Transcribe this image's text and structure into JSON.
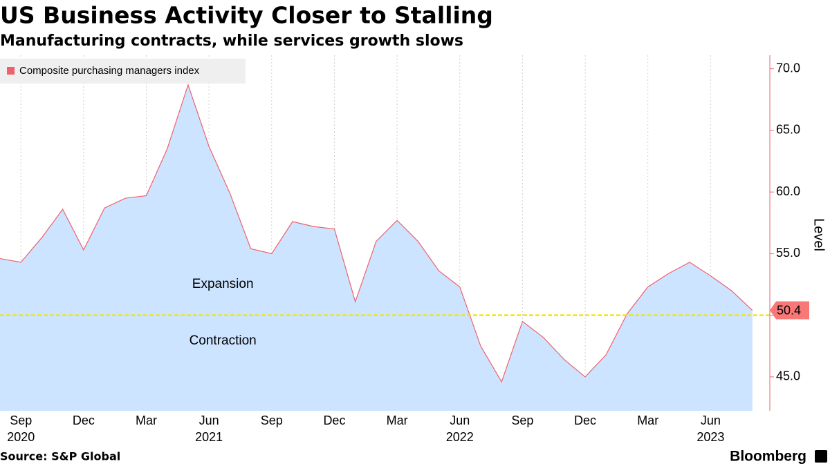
{
  "chart_data": {
    "type": "area",
    "title": "US Business Activity Closer to Stalling",
    "subtitle": "Manufacturing contracts, while services growth slows",
    "y_axis_label": "Level",
    "source": "Source: S&P Global",
    "brand": "Bloomberg",
    "x": [
      "2020-08",
      "2020-09",
      "2020-10",
      "2020-11",
      "2020-12",
      "2021-01",
      "2021-02",
      "2021-03",
      "2021-04",
      "2021-05",
      "2021-06",
      "2021-07",
      "2021-08",
      "2021-09",
      "2021-10",
      "2021-11",
      "2021-12",
      "2022-01",
      "2022-02",
      "2022-03",
      "2022-04",
      "2022-05",
      "2022-06",
      "2022-07",
      "2022-08",
      "2022-09",
      "2022-10",
      "2022-11",
      "2022-12",
      "2023-01",
      "2023-02",
      "2023-03",
      "2023-04",
      "2023-05",
      "2023-06",
      "2023-07",
      "2023-08"
    ],
    "series": [
      {
        "name": "Composite purchasing managers index",
        "color": "#f0606a",
        "fill": "#cce4ff",
        "values": [
          54.6,
          54.3,
          56.3,
          58.6,
          55.3,
          58.7,
          59.5,
          59.7,
          63.5,
          68.7,
          63.7,
          59.9,
          55.4,
          55.0,
          57.6,
          57.2,
          57.0,
          51.1,
          56.0,
          57.7,
          56.0,
          53.6,
          52.3,
          47.5,
          44.6,
          49.5,
          48.2,
          46.4,
          45.0,
          46.8,
          50.1,
          52.3,
          53.4,
          54.3,
          53.2,
          52.0,
          50.4
        ],
        "value_labels": [
          null,
          null,
          null,
          null,
          null,
          null,
          null,
          null,
          null,
          null,
          null,
          null,
          null,
          null,
          null,
          null,
          null,
          null,
          null,
          null,
          null,
          null,
          null,
          null,
          null,
          null,
          null,
          null,
          null,
          null,
          null,
          null,
          null,
          null,
          null,
          null,
          "50.4"
        ]
      }
    ],
    "xlim": [
      "2020-08",
      "2023-09"
    ],
    "xticks": [
      {
        "value": "2020-09",
        "label": "Sep"
      },
      {
        "value": "2020-12",
        "label": "Dec"
      },
      {
        "value": "2021-03",
        "label": "Mar"
      },
      {
        "value": "2021-06",
        "label": "Jun"
      },
      {
        "value": "2021-09",
        "label": "Sep"
      },
      {
        "value": "2021-12",
        "label": "Dec"
      },
      {
        "value": "2022-03",
        "label": "Mar"
      },
      {
        "value": "2022-06",
        "label": "Jun"
      },
      {
        "value": "2022-09",
        "label": "Sep"
      },
      {
        "value": "2022-12",
        "label": "Dec"
      },
      {
        "value": "2023-03",
        "label": "Mar"
      },
      {
        "value": "2023-06",
        "label": "Jun"
      }
    ],
    "xyears": [
      {
        "value": "2020-09",
        "label": "2020"
      },
      {
        "value": "2021-06",
        "label": "2021"
      },
      {
        "value": "2022-06",
        "label": "2022"
      },
      {
        "value": "2023-06",
        "label": "2023"
      }
    ],
    "ylim": [
      42.25,
      71.1
    ],
    "yticks": [
      {
        "value": 45,
        "label": "45.0"
      },
      {
        "value": 50,
        "label": "50.0"
      },
      {
        "value": 55,
        "label": "55.0"
      },
      {
        "value": 60,
        "label": "60.0"
      },
      {
        "value": 65,
        "label": "65.0"
      },
      {
        "value": 70,
        "label": "70.0"
      }
    ],
    "axis_color": "#f0606a",
    "grid": "x",
    "reference_line": {
      "value": 50,
      "color": "#f2e600"
    },
    "annotations": [
      {
        "text": "Expansion",
        "color": "#66cc22",
        "x": "2021-06",
        "y": 52.5
      },
      {
        "text": "Contraction",
        "color": "#e0204a",
        "x": "2021-06",
        "y": 47.9
      }
    ],
    "legend": "top-left"
  }
}
